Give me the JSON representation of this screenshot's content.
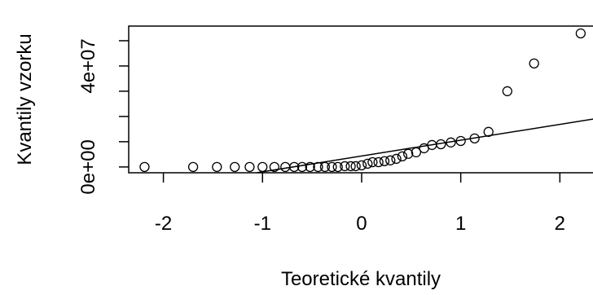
{
  "chart_data": {
    "type": "scatter",
    "xlabel": "Teoretické kvantily",
    "ylabel": "Kvantily vzorku",
    "x": [
      -2.19,
      -1.7,
      -1.46,
      -1.28,
      -1.13,
      -1.0,
      -0.88,
      -0.77,
      -0.68,
      -0.6,
      -0.52,
      -0.44,
      -0.37,
      -0.3,
      -0.24,
      -0.17,
      -0.11,
      -0.06,
      0.0,
      0.06,
      0.11,
      0.17,
      0.23,
      0.29,
      0.35,
      0.41,
      0.47,
      0.55,
      0.63,
      0.71,
      0.8,
      0.9,
      1.0,
      1.14,
      1.28,
      1.47,
      1.74,
      2.21
    ],
    "values": [
      0,
      0,
      0,
      0,
      0,
      0,
      0,
      0,
      0,
      0,
      0,
      0,
      0,
      0,
      0,
      300000,
      300000,
      300000,
      650000,
      1300000,
      1900000,
      1900000,
      2300000,
      2600000,
      3200000,
      4200000,
      5200000,
      5800000,
      7400000,
      8700000,
      9000000,
      9700000,
      10300000,
      11300000,
      13900000,
      30000000,
      41000000,
      52900000
    ],
    "color": "#000000",
    "reference_line": {
      "x": [
        -1.06,
        2.34
      ],
      "y": [
        -2300000,
        19000000
      ]
    },
    "xlim": [
      -2.35,
      2.4
    ],
    "ylim": [
      -2300000,
      55800000
    ],
    "xticks": [
      -2,
      -1,
      0,
      1,
      2
    ],
    "yticks": [
      {
        "value": 0,
        "label": "0e+00"
      },
      {
        "value": 10000000,
        "label": null
      },
      {
        "value": 20000000,
        "label": null
      },
      {
        "value": 30000000,
        "label": null
      },
      {
        "value": 40000000,
        "label": "4e+07"
      },
      {
        "value": 50000000,
        "label": null
      }
    ]
  }
}
